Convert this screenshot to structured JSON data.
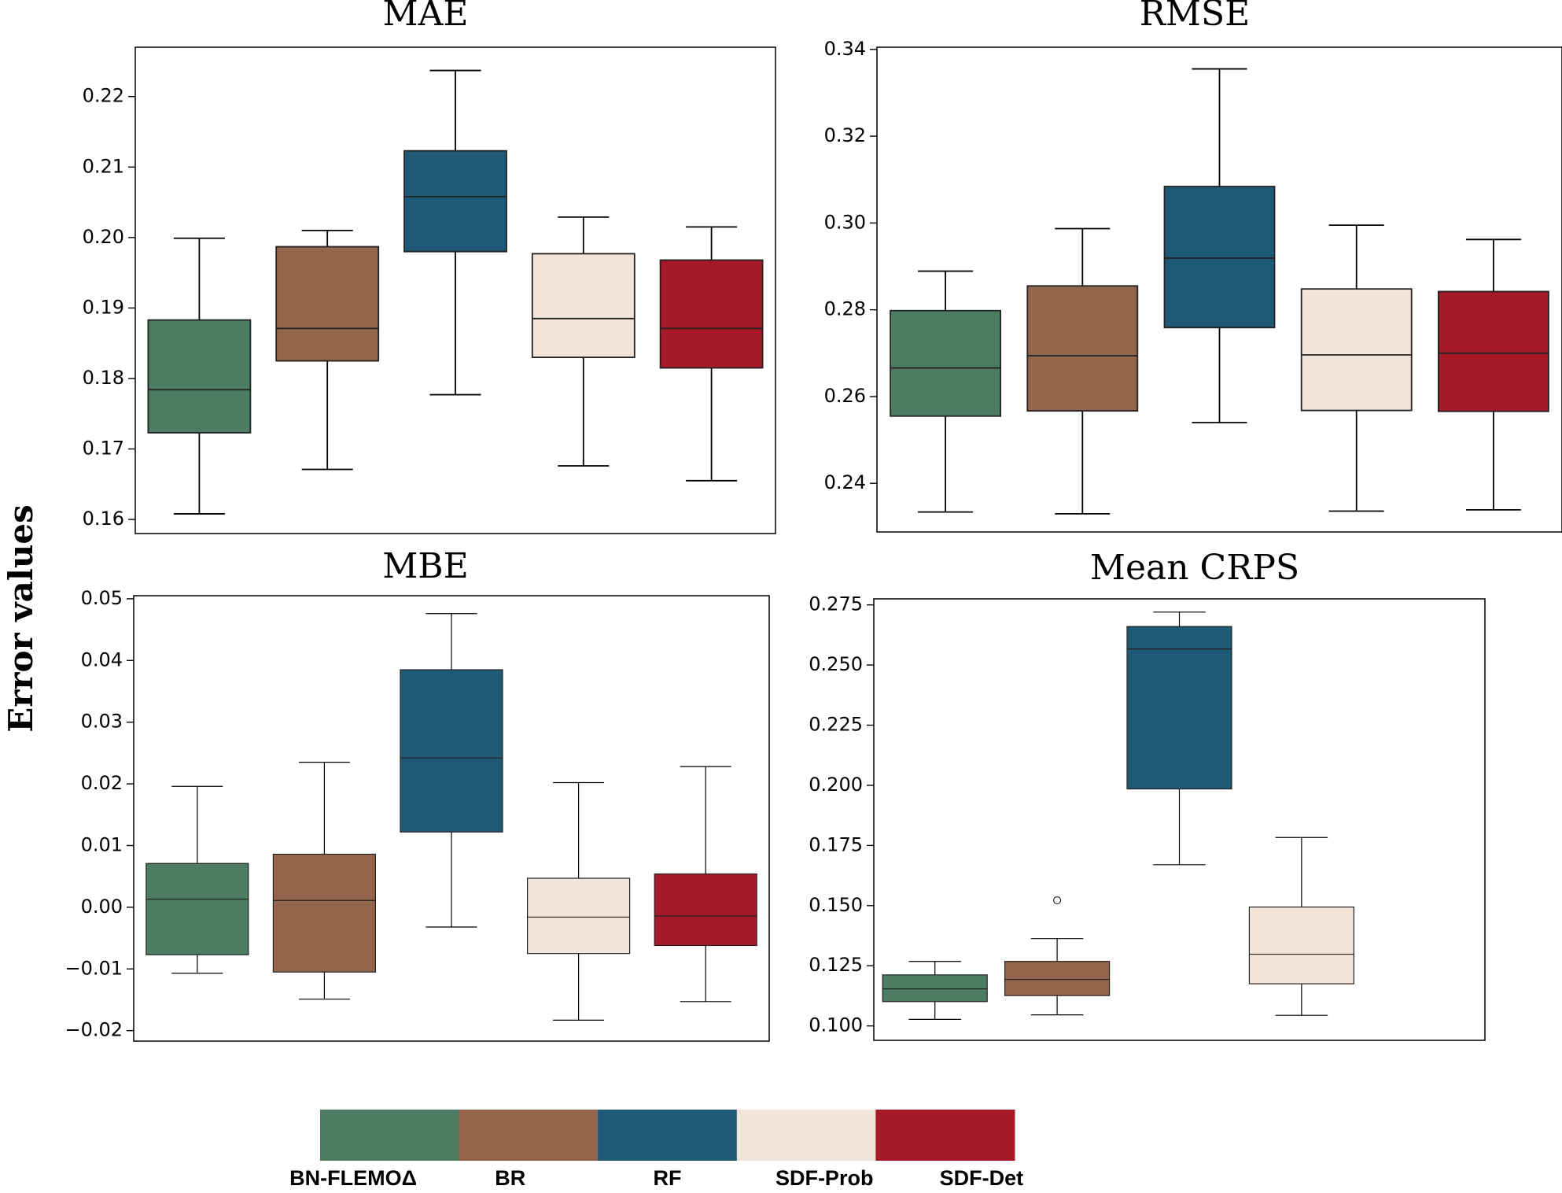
{
  "figure": {
    "ylabel": "Error values"
  },
  "palette": {
    "BN-FLEMOΔ": "#4d7c65",
    "BR": "#93654d",
    "RF": "#1e5a76",
    "SDF-Prob": "#f2e4d8",
    "SDF-Det": "#a51929"
  },
  "legend": {
    "items": [
      {
        "label": "BN-FLEMOΔ",
        "color": "#4d7c65"
      },
      {
        "label": "BR",
        "color": "#93654d"
      },
      {
        "label": "RF",
        "color": "#1e5a76"
      },
      {
        "label": "SDF-Prob",
        "color": "#f2e4d8"
      },
      {
        "label": "SDF-Det",
        "color": "#a51929"
      }
    ]
  },
  "chart_data": [
    {
      "type": "box",
      "title": "MAE",
      "ylabel": "Error values",
      "ylim": [
        0.158,
        0.227
      ],
      "yticks": [
        0.16,
        0.17,
        0.18,
        0.19,
        0.2,
        0.21,
        0.22
      ],
      "ytick_labels": [
        "0.16",
        "0.17",
        "0.18",
        "0.19",
        "0.20",
        "0.21",
        "0.22"
      ],
      "series": [
        {
          "name": "BN-FLEMOΔ",
          "whislo": 0.1608,
          "q1": 0.1723,
          "med": 0.1784,
          "q3": 0.1883,
          "whishi": 0.1999,
          "fliers": []
        },
        {
          "name": "BR",
          "whislo": 0.1671,
          "q1": 0.1825,
          "med": 0.1871,
          "q3": 0.1987,
          "whishi": 0.201,
          "fliers": []
        },
        {
          "name": "RF",
          "whislo": 0.1777,
          "q1": 0.198,
          "med": 0.2058,
          "q3": 0.2123,
          "whishi": 0.2237,
          "fliers": []
        },
        {
          "name": "SDF-Prob",
          "whislo": 0.1676,
          "q1": 0.183,
          "med": 0.1885,
          "q3": 0.1977,
          "whishi": 0.2029,
          "fliers": []
        },
        {
          "name": "SDF-Det",
          "whislo": 0.1655,
          "q1": 0.1815,
          "med": 0.1871,
          "q3": 0.1968,
          "whishi": 0.2015,
          "fliers": []
        }
      ]
    },
    {
      "type": "box",
      "title": "RMSE",
      "ylabel": "Error values",
      "ylim": [
        0.2288,
        0.3405
      ],
      "yticks": [
        0.24,
        0.26,
        0.28,
        0.3,
        0.32,
        0.34
      ],
      "ytick_labels": [
        "0.24",
        "0.26",
        "0.28",
        "0.30",
        "0.32",
        "0.34"
      ],
      "series": [
        {
          "name": "BN-FLEMOΔ",
          "whislo": 0.2334,
          "q1": 0.2555,
          "med": 0.2666,
          "q3": 0.2798,
          "whishi": 0.2889,
          "fliers": []
        },
        {
          "name": "BR",
          "whislo": 0.233,
          "q1": 0.2567,
          "med": 0.2694,
          "q3": 0.2855,
          "whishi": 0.2987,
          "fliers": []
        },
        {
          "name": "RF",
          "whislo": 0.254,
          "q1": 0.2759,
          "med": 0.2919,
          "q3": 0.3084,
          "whishi": 0.3355,
          "fliers": []
        },
        {
          "name": "SDF-Prob",
          "whislo": 0.2336,
          "q1": 0.2568,
          "med": 0.2696,
          "q3": 0.2848,
          "whishi": 0.2995,
          "fliers": []
        },
        {
          "name": "SDF-Det",
          "whislo": 0.2339,
          "q1": 0.2566,
          "med": 0.27,
          "q3": 0.2842,
          "whishi": 0.2962,
          "fliers": []
        }
      ]
    },
    {
      "type": "box",
      "title": "MBE",
      "ylabel": "Error values",
      "ylim": [
        -0.0217,
        0.0505
      ],
      "yticks": [
        -0.02,
        -0.01,
        0.0,
        0.01,
        0.02,
        0.03,
        0.04,
        0.05
      ],
      "ytick_labels": [
        "−0.02",
        "−0.01",
        "0.00",
        "0.01",
        "0.02",
        "0.03",
        "0.04",
        "0.05"
      ],
      "series": [
        {
          "name": "BN-FLEMOΔ",
          "whislo": -0.0107,
          "q1": -0.0077,
          "med": 0.0013,
          "q3": 0.0071,
          "whishi": 0.0196,
          "fliers": []
        },
        {
          "name": "BR",
          "whislo": -0.0149,
          "q1": -0.0105,
          "med": 0.0011,
          "q3": 0.0086,
          "whishi": 0.0235,
          "fliers": []
        },
        {
          "name": "RF",
          "whislo": -0.0032,
          "q1": 0.0122,
          "med": 0.0242,
          "q3": 0.0385,
          "whishi": 0.0476,
          "fliers": []
        },
        {
          "name": "SDF-Prob",
          "whislo": -0.0183,
          "q1": -0.0075,
          "med": -0.0016,
          "q3": 0.0047,
          "whishi": 0.0202,
          "fliers": []
        },
        {
          "name": "SDF-Det",
          "whislo": -0.0153,
          "q1": -0.0062,
          "med": -0.0014,
          "q3": 0.0054,
          "whishi": 0.0228,
          "fliers": []
        }
      ]
    },
    {
      "type": "box",
      "title": "Mean CRPS",
      "ylabel": "Error values",
      "ylim": [
        0.094,
        0.2775
      ],
      "yticks": [
        0.1,
        0.125,
        0.15,
        0.175,
        0.2,
        0.225,
        0.25,
        0.275
      ],
      "ytick_labels": [
        "0.100",
        "0.125",
        "0.150",
        "0.175",
        "0.200",
        "0.225",
        "0.250",
        "0.275"
      ],
      "series": [
        {
          "name": "BN-FLEMOΔ",
          "whislo": 0.1027,
          "q1": 0.1101,
          "med": 0.1154,
          "q3": 0.1212,
          "whishi": 0.1268,
          "fliers": []
        },
        {
          "name": "BR",
          "whislo": 0.1046,
          "q1": 0.1126,
          "med": 0.1193,
          "q3": 0.1268,
          "whishi": 0.1363,
          "fliers": [
            0.1522
          ]
        },
        {
          "name": "RF",
          "whislo": 0.167,
          "q1": 0.1985,
          "med": 0.2567,
          "q3": 0.266,
          "whishi": 0.272,
          "fliers": []
        },
        {
          "name": "SDF-Prob",
          "whislo": 0.1044,
          "q1": 0.1175,
          "med": 0.1298,
          "q3": 0.1494,
          "whishi": 0.1783,
          "fliers": []
        }
      ]
    }
  ]
}
